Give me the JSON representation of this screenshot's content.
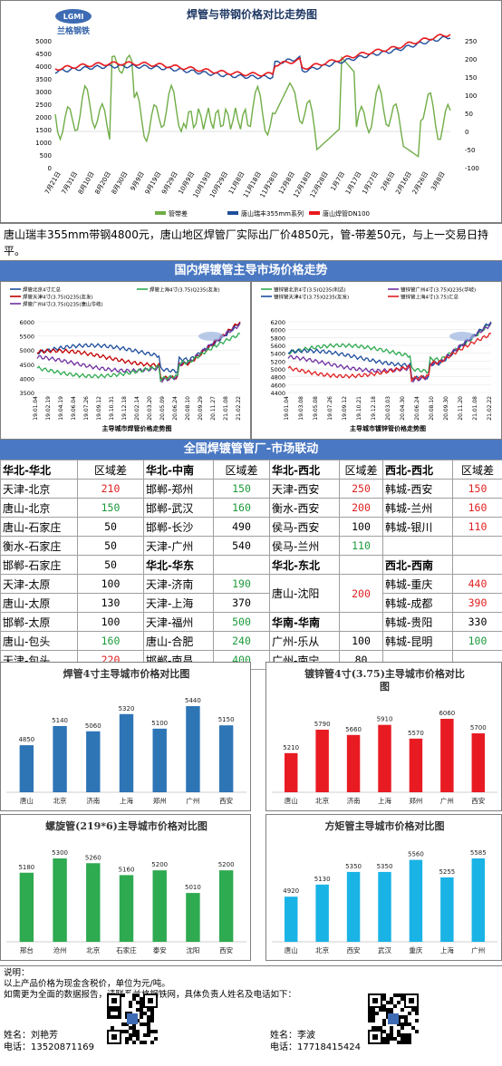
{
  "main_chart": {
    "logo_text": "兰格钢铁",
    "title": "焊管与带钢价格对比走势图",
    "left_ticks": [
      "0",
      "500",
      "1000",
      "1500",
      "2000",
      "2500",
      "3000",
      "3500",
      "4000",
      "4500",
      "5000"
    ],
    "right_ticks": [
      "-100",
      "-50",
      "0",
      "50",
      "100",
      "150",
      "200",
      "250"
    ],
    "x_labels": [
      "7月21日",
      "7月31日",
      "8月10日",
      "8月20日",
      "8月30日",
      "9月9日",
      "9月19日",
      "9月29日",
      "10月9日",
      "10月19日",
      "10月29日",
      "11月8日",
      "11月18日",
      "11月28日",
      "12月8日",
      "12月18日",
      "12月28日",
      "1月7日",
      "1月17日",
      "1月27日",
      "2月6日",
      "2月16日",
      "2月26日",
      "3月8日"
    ],
    "legend": [
      "管带差",
      "唐山瑞丰355mm系列",
      "唐山焊管DN100"
    ],
    "colors": {
      "diff": "#70ad47",
      "strip": "#1f4e9c",
      "pipe": "#e8191d"
    }
  },
  "summary": "唐山瑞丰355mm带钢4800元，唐山地区焊管厂实际出厂价4850元，管-带差50元，与上一交易日持平。",
  "domestic_title": "国内焊镀管主导市场价格走势",
  "left_trend": {
    "legend": [
      "焊管北京4寸汇总",
      "焊管天津4寸(3.75)Q235(友发)",
      "焊管广州4寸(3.75)Q235(唐山华岐)",
      "焊管上海4寸(3.75)Q235(友发)"
    ],
    "caption": "主导城市焊管价格走势图",
    "y_ticks": [
      "3500",
      "4000",
      "4500",
      "5000",
      "5500",
      "6000"
    ],
    "x_labels": [
      "19.01.04",
      "19.02.19",
      "19.04.19",
      "19.06.04",
      "19.07.26",
      "19.09.12",
      "19.10.31",
      "19.12.18",
      "20.02.14",
      "20.03.20",
      "20.05.09",
      "20.06.24",
      "20.08.10",
      "20.09.29",
      "20.11.27",
      "21.01.08",
      "21.02.22"
    ]
  },
  "right_trend": {
    "legend": [
      "镀锌管北京4寸(3.5)Q235(利达)",
      "镀锌管天津4寸(3.75)Q235(友发)",
      "镀锌管广州4寸(3.75)Q235(华岐)",
      "镀锌管上海4寸(3.75)汇总"
    ],
    "caption": "主导城市镀锌管价格走势图",
    "y_ticks": [
      "4400",
      "4600",
      "4800",
      "5000",
      "5200",
      "5400",
      "5600",
      "5800",
      "6000",
      "6200"
    ],
    "x_labels": [
      "19.01.04",
      "19.03.08",
      "19.05.08",
      "19.07.26",
      "19.09.12",
      "19.10.21",
      "19.12.18",
      "20.03.03",
      "20.04.30",
      "20.06.24",
      "20.08.10",
      "20.09.30",
      "20.11.20",
      "21.01.08",
      "21.02.22"
    ]
  },
  "linkage_title": "全国焊镀管管厂-市场联动",
  "linkage": {
    "rows": [
      [
        {
          "route": "华北-华北",
          "diff": "区域差",
          "head": true
        },
        {
          "route": "华北-中南",
          "diff": "区域差",
          "head": true
        },
        {
          "route": "华北-西北",
          "diff": "区域差",
          "head": true
        },
        {
          "route": "西北-西北",
          "diff": "区域差",
          "head": true
        }
      ],
      [
        {
          "route": "天津-北京",
          "diff": "210",
          "color": "#e02020"
        },
        {
          "route": "邯郸-郑州",
          "diff": "150",
          "color": "#1a9a3a"
        },
        {
          "route": "天津-西安",
          "diff": "250",
          "color": "#e02020"
        },
        {
          "route": "韩城-西安",
          "diff": "150",
          "color": "#e02020"
        }
      ],
      [
        {
          "route": "唐山-北京",
          "diff": "150",
          "color": "#1a9a3a"
        },
        {
          "route": "邯郸-武汉",
          "diff": "160",
          "color": "#1a9a3a"
        },
        {
          "route": "衡水-西安",
          "diff": "200",
          "color": "#e02020"
        },
        {
          "route": "韩城-兰州",
          "diff": "160",
          "color": "#e02020"
        }
      ],
      [
        {
          "route": "唐山-石家庄",
          "diff": "50",
          "color": "#000000"
        },
        {
          "route": "邯郸-长沙",
          "diff": "490",
          "color": "#000000"
        },
        {
          "route": "侯马-西安",
          "diff": "100",
          "color": "#000000"
        },
        {
          "route": "韩城-银川",
          "diff": "110",
          "color": "#e02020"
        }
      ],
      [
        {
          "route": "衡水-石家庄",
          "diff": "50",
          "color": "#000000"
        },
        {
          "route": "天津-广州",
          "diff": "540",
          "color": "#000000"
        },
        {
          "route": "侯马-兰州",
          "diff": "110",
          "color": "#1a9a3a"
        },
        {
          "route": "",
          "diff": ""
        }
      ],
      [
        {
          "route": "邯郸-石家庄",
          "diff": "50",
          "color": "#000000"
        },
        {
          "route": "华北-华东",
          "diff": "",
          "head": true
        },
        {
          "route": "华北-东北",
          "diff": "",
          "head": true
        },
        {
          "route": "西北-西南",
          "diff": "",
          "head": true
        }
      ],
      [
        {
          "route": "天津-太原",
          "diff": "100",
          "color": "#000000"
        },
        {
          "route": "天津-济南",
          "diff": "190",
          "color": "#1a9a3a"
        },
        {
          "route": "唐山-沈阳",
          "diff": "200",
          "color": "#e02020",
          "rowspan": 2
        },
        {
          "route": "韩城-重庆",
          "diff": "440",
          "color": "#e02020"
        }
      ],
      [
        {
          "route": "唐山-太原",
          "diff": "130",
          "color": "#000000"
        },
        {
          "route": "天津-上海",
          "diff": "370",
          "color": "#000000"
        },
        null,
        {
          "route": "韩城-成都",
          "diff": "390",
          "color": "#e02020"
        }
      ],
      [
        {
          "route": "邯郸-太原",
          "diff": "100",
          "color": "#000000"
        },
        {
          "route": "天津-福州",
          "diff": "500",
          "color": "#1a9a3a"
        },
        {
          "route": "华南-华南",
          "diff": "",
          "head": true
        },
        {
          "route": "韩城-贵阳",
          "diff": "330",
          "color": "#000000"
        }
      ],
      [
        {
          "route": "唐山-包头",
          "diff": "160",
          "color": "#1a9a3a"
        },
        {
          "route": "唐山-合肥",
          "diff": "240",
          "color": "#1a9a3a"
        },
        {
          "route": "广州-乐从",
          "diff": "100",
          "color": "#000000"
        },
        {
          "route": "韩城-昆明",
          "diff": "100",
          "color": "#1a9a3a"
        }
      ],
      [
        {
          "route": "天津-包头",
          "diff": "220",
          "color": "#e02020"
        },
        {
          "route": "邯郸-南昌",
          "diff": "400",
          "color": "#1a9a3a"
        },
        {
          "route": "广州-南宁",
          "diff": "80",
          "color": "#000000"
        },
        {
          "route": "",
          "diff": ""
        }
      ]
    ]
  },
  "chart_data": [
    {
      "type": "bar",
      "title": "焊管4寸主导城市价格对比图",
      "categories": [
        "唐山",
        "北京",
        "济南",
        "上海",
        "郑州",
        "广州",
        "西安"
      ],
      "values": [
        4850,
        5140,
        5060,
        5320,
        5100,
        5440,
        5150
      ],
      "color": "#2e75b6"
    },
    {
      "type": "bar",
      "title": "镀锌管4寸(3.75)主导城市价格对比图",
      "categories": [
        "唐山",
        "北京",
        "济南",
        "上海",
        "郑州",
        "广州",
        "西安"
      ],
      "values": [
        5210,
        5790,
        5660,
        5910,
        5570,
        6060,
        5700
      ],
      "color": "#e81b23"
    },
    {
      "type": "bar",
      "title": "螺旋管(219*6)主导城市价格对比图",
      "categories": [
        "邢台",
        "沧州",
        "北京",
        "石家庄",
        "泰安",
        "沈阳",
        "西安"
      ],
      "values": [
        5180,
        5300,
        5260,
        5160,
        5200,
        5010,
        5200
      ],
      "color": "#2eaa50"
    },
    {
      "type": "bar",
      "title": "方矩管主导城市价格对比图",
      "categories": [
        "唐山",
        "北京",
        "西安",
        "武汉",
        "重庆",
        "上海",
        "广州"
      ],
      "values": [
        4920,
        5130,
        5350,
        5350,
        5560,
        5255,
        5585
      ],
      "color": "#1ab3e6"
    }
  ],
  "notes": {
    "label": "说明：",
    "line1": "以上产品价格为现金含税价，单位为元/吨。",
    "line2": "如需更为全面的数据报告，请联系兰格钢铁网，具体负责人姓名及电话如下：",
    "contacts": [
      {
        "name_label": "姓名：刘艳芳",
        "phone_label": "电话：13520871169"
      },
      {
        "name_label": "姓名：李波",
        "phone_label": "电话：17718415424"
      }
    ]
  }
}
